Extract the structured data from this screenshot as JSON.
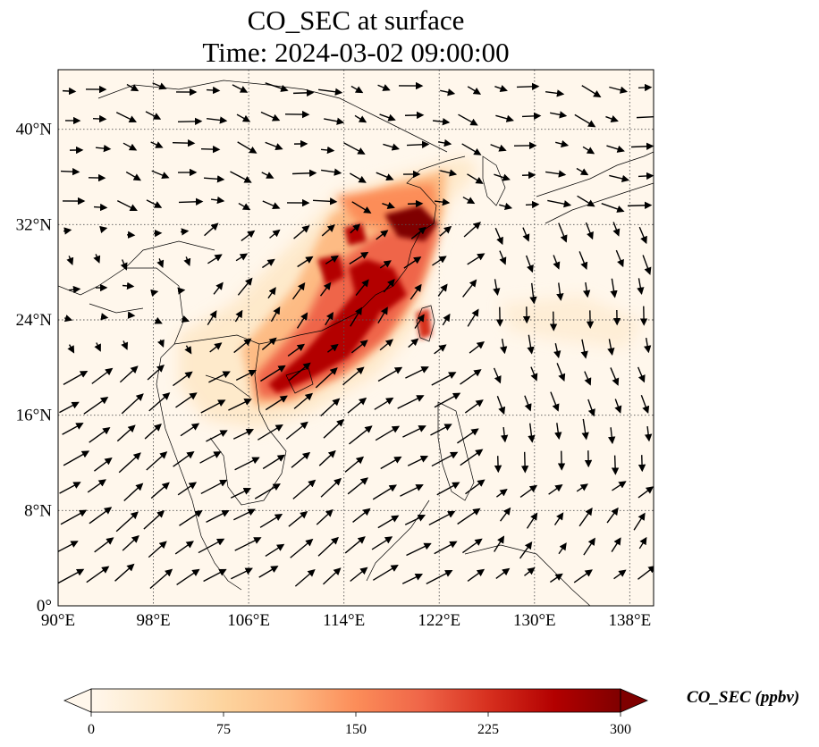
{
  "title_line1": "CO_SEC at surface",
  "title_line2": "Time: 2024-03-02 09:00:00",
  "lon_ticks": [
    "90°E",
    "98°E",
    "106°E",
    "114°E",
    "122°E",
    "130°E",
    "138°E"
  ],
  "lat_ticks": [
    "0°",
    "8°N",
    "16°N",
    "24°N",
    "32°N",
    "40°N"
  ],
  "lon_values": [
    90,
    98,
    106,
    114,
    122,
    130,
    138
  ],
  "lat_values": [
    0,
    8,
    16,
    24,
    32,
    40
  ],
  "extent": {
    "lon_min": 90,
    "lon_max": 140,
    "lat_min": 0,
    "lat_max": 45
  },
  "colorbar": {
    "label": "CO_SEC (ppbv)",
    "ticks": [
      "0",
      "75",
      "150",
      "225",
      "300"
    ],
    "tick_values": [
      0,
      75,
      150,
      225,
      300
    ],
    "min": 0,
    "max": 300,
    "colormap": "OrRd",
    "colors": [
      "#fff7ec",
      "#fee8c8",
      "#fdd49e",
      "#fdbb84",
      "#fc8d59",
      "#ef6548",
      "#d7301f",
      "#b30000",
      "#7f0000"
    ]
  },
  "gridlines": "dotted"
}
